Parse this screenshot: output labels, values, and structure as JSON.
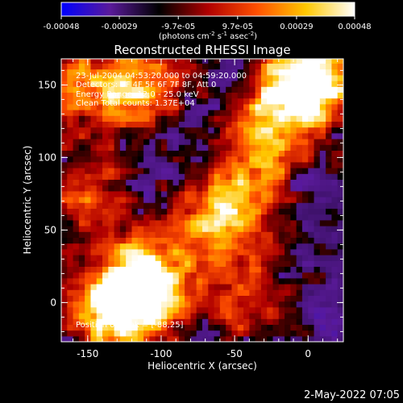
{
  "chart_data": {
    "type": "heatmap",
    "title": "Reconstructed RHESSI Image",
    "xlabel": "Heliocentric X (arcsec)",
    "ylabel": "Heliocentric Y (arcsec)",
    "xlim": [
      -168,
      24
    ],
    "ylim": [
      -27,
      168
    ],
    "x_ticks": [
      -150,
      -100,
      -50,
      0
    ],
    "y_ticks": [
      0,
      50,
      100,
      150
    ],
    "colorbar": {
      "min": -0.00048,
      "max": 0.00048,
      "tick_labels": [
        "-0.00048",
        "-0.00029",
        "-9.7e-05",
        "9.7e-05",
        "0.00029",
        "0.00048"
      ],
      "unit_label": "(photons cm",
      "unit_exp1": "-2",
      "unit_mid": " s",
      "unit_exp2": "-1",
      "unit_mid2": " asec",
      "unit_exp3": "-2",
      "unit_end": ")"
    },
    "info_lines": [
      "23-Jul-2004 04:53:20.000 to 04:59:20.000",
      "Detectors: 3F 4F 5F 6F 7F 8F, Att 0",
      "Energy Range: 12.0 - 25.0 keV",
      "Clean     Total counts: 1.37E+04"
    ],
    "peak_label": "Position of Peak = [-88,25]",
    "bright_regions": [
      {
        "x": -110,
        "y": 15,
        "level": 1.0
      },
      {
        "x": -130,
        "y": -5,
        "level": 0.95
      },
      {
        "x": -60,
        "y": 55,
        "level": 0.8
      },
      {
        "x": -15,
        "y": 140,
        "level": 0.85
      },
      {
        "x": 10,
        "y": 160,
        "level": 0.8
      },
      {
        "x": -115,
        "y": 150,
        "level": 0.7
      },
      {
        "x": -35,
        "y": 95,
        "level": 0.55
      },
      {
        "x": -150,
        "y": 75,
        "level": 0.5
      },
      {
        "x": -155,
        "y": 150,
        "level": 0.55
      },
      {
        "x": -40,
        "y": 0,
        "level": 0.45
      }
    ],
    "colors": {
      "colorbar_gradient": [
        "#0000ff",
        "#5a1a9a",
        "#000000",
        "#b00000",
        "#ff5000",
        "#ffc800",
        "#ffffff"
      ]
    }
  },
  "footer": {
    "timestamp": "2-May-2022 07:05"
  }
}
